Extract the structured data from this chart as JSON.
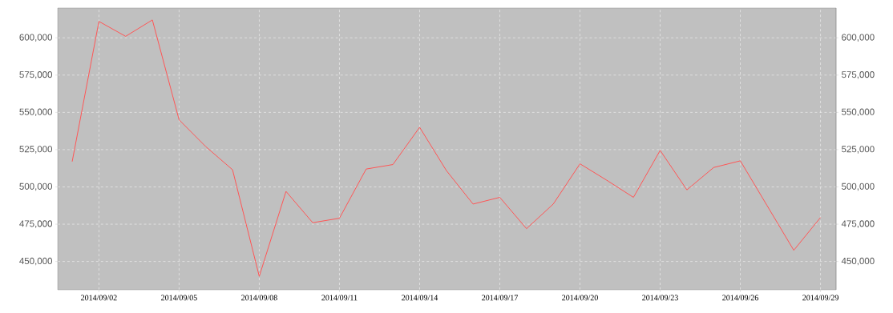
{
  "chart_data": {
    "type": "line",
    "x": [
      "2014-09-01",
      "2014-09-02",
      "2014-09-03",
      "2014-09-04",
      "2014-09-05",
      "2014-09-06",
      "2014-09-07",
      "2014-09-08",
      "2014-09-09",
      "2014-09-10",
      "2014-09-11",
      "2014-09-12",
      "2014-09-13",
      "2014-09-14",
      "2014-09-15",
      "2014-09-16",
      "2014-09-17",
      "2014-09-18",
      "2014-09-19",
      "2014-09-20",
      "2014-09-21",
      "2014-09-22",
      "2014-09-23",
      "2014-09-24",
      "2014-09-25",
      "2014-09-26",
      "2014-09-27",
      "2014-09-28",
      "2014-09-29"
    ],
    "series": [
      {
        "color": "#ff5555",
        "values": [
          517000,
          611000,
          601000,
          612000,
          545000,
          527000,
          511500,
          440000,
          497000,
          476000,
          479000,
          512000,
          515000,
          540000,
          511000,
          488500,
          493000,
          472000,
          488500,
          515500,
          504500,
          493000,
          524500,
          498000,
          513000,
          517500,
          487500,
          457500,
          479500
        ]
      }
    ],
    "xlim": [
      "2014-08-31T11:00",
      "2014-09-29T14:00"
    ],
    "xticks": [
      {
        "value": "2014-09-02",
        "label": "2014/09/02"
      },
      {
        "value": "2014-09-05",
        "label": "2014/09/05"
      },
      {
        "value": "2014-09-08",
        "label": "2014/09/08"
      },
      {
        "value": "2014-09-11",
        "label": "2014/09/11"
      },
      {
        "value": "2014-09-14",
        "label": "2014/09/14"
      },
      {
        "value": "2014-09-17",
        "label": "2014/09/17"
      },
      {
        "value": "2014-09-20",
        "label": "2014/09/20"
      },
      {
        "value": "2014-09-23",
        "label": "2014/09/23"
      },
      {
        "value": "2014-09-26",
        "label": "2014/09/26"
      },
      {
        "value": "2014-09-29",
        "label": "2014/09/29"
      }
    ],
    "ylim": [
      431000,
      620000
    ],
    "yticks": [
      {
        "value": 450000,
        "label": "450,000"
      },
      {
        "value": 475000,
        "label": "475,000"
      },
      {
        "value": 500000,
        "label": "500,000"
      },
      {
        "value": 525000,
        "label": "525,000"
      },
      {
        "value": 550000,
        "label": "550,000"
      },
      {
        "value": 575000,
        "label": "575,000"
      },
      {
        "value": 600000,
        "label": "600,000"
      }
    ],
    "y2lim": [
      431000,
      620000
    ],
    "y2ticks": [
      {
        "value": 450000,
        "label": "450,000"
      },
      {
        "value": 475000,
        "label": "475,000"
      },
      {
        "value": 500000,
        "label": "500,000"
      },
      {
        "value": 525000,
        "label": "525,000"
      },
      {
        "value": 550000,
        "label": "550,000"
      },
      {
        "value": 575000,
        "label": "575,000"
      },
      {
        "value": 600000,
        "label": "600,000"
      }
    ],
    "grid": true
  }
}
